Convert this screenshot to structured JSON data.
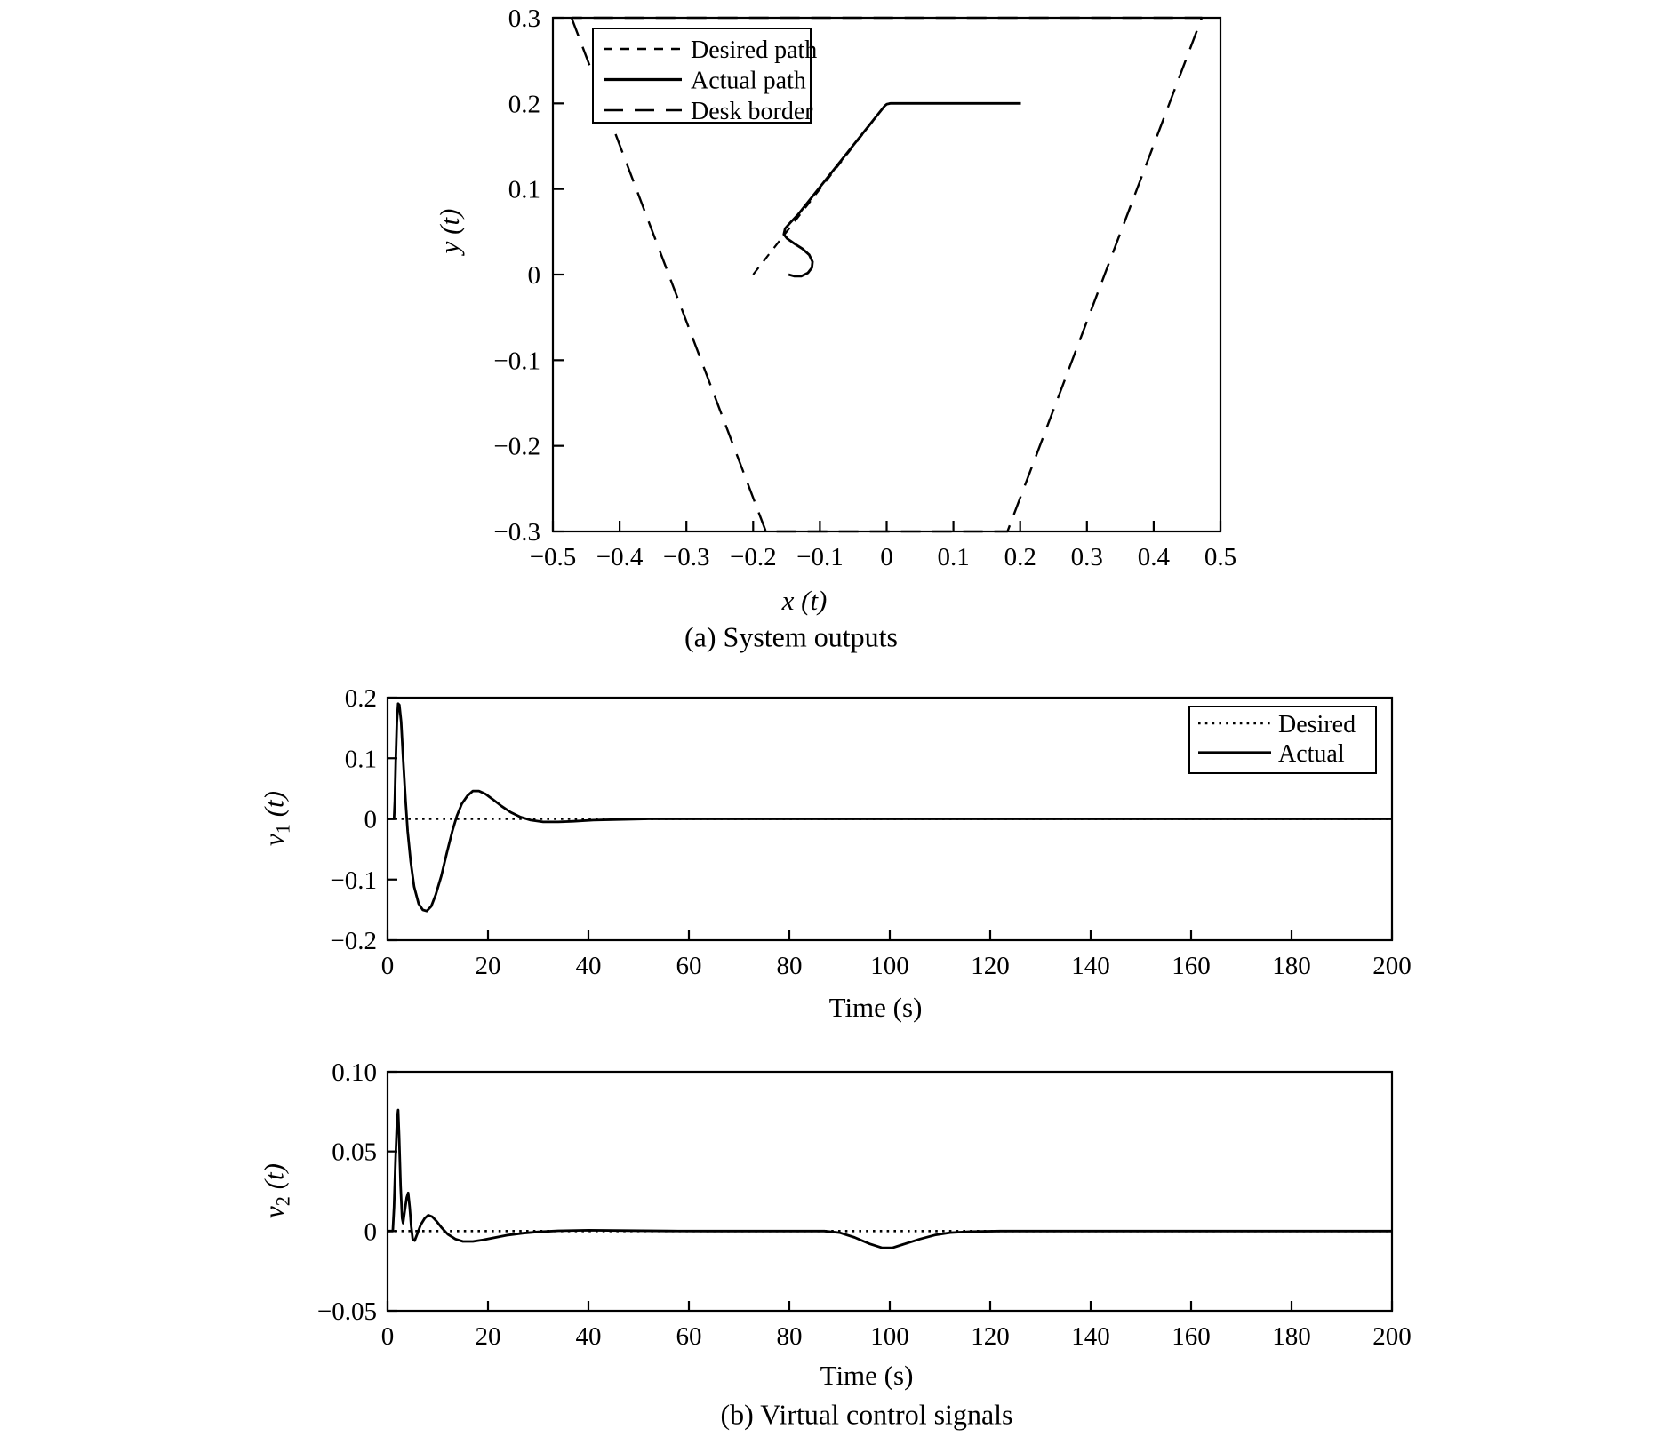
{
  "figure": {
    "background": "#ffffff",
    "line_color": "#000000",
    "caption_a": "(a) System outputs",
    "caption_b": "(b) Virtual control signals"
  },
  "chart_data": [
    {
      "id": "plot-a",
      "type": "line",
      "title": "(a) System outputs",
      "xlabel": "x (t)",
      "ylabel": "y (t)",
      "xlim": [
        -0.5,
        0.5
      ],
      "ylim": [
        -0.3,
        0.3
      ],
      "grid": false,
      "legend_position": "top-left-inside",
      "xtick_vals": [
        -0.5,
        -0.4,
        -0.3,
        -0.2,
        -0.1,
        0,
        0.1,
        0.2,
        0.3,
        0.4,
        0.5
      ],
      "xtick_labels": [
        "−0.5",
        "−0.4",
        "−0.3",
        "−0.2",
        "−0.1",
        "0",
        "0.1",
        "0.2",
        "0.3",
        "0.4",
        "0.5"
      ],
      "ytick_vals": [
        0.3,
        0.2,
        0.1,
        0,
        -0.1,
        -0.2,
        -0.3
      ],
      "ytick_labels": [
        "0.3",
        "0.2",
        "0.1",
        "0",
        "−0.1",
        "−0.2",
        "−0.3"
      ],
      "series": [
        {
          "name": "Desired path",
          "style": "dash",
          "points": [
            [
              -0.2,
              0.0
            ],
            [
              0.0,
              0.2
            ],
            [
              0.2,
              0.2
            ]
          ]
        },
        {
          "name": "Actual path",
          "style": "solid",
          "points": [
            [
              -0.147,
              0.0
            ],
            [
              -0.138,
              -0.002
            ],
            [
              -0.128,
              -0.002
            ],
            [
              -0.118,
              0.002
            ],
            [
              -0.112,
              0.008
            ],
            [
              -0.111,
              0.015
            ],
            [
              -0.116,
              0.023
            ],
            [
              -0.126,
              0.03
            ],
            [
              -0.138,
              0.036
            ],
            [
              -0.149,
              0.042
            ],
            [
              -0.154,
              0.047
            ],
            [
              -0.152,
              0.054
            ],
            [
              -0.144,
              0.061
            ],
            [
              -0.133,
              0.07
            ],
            [
              -0.003,
              0.197
            ],
            [
              0.0,
              0.199
            ],
            [
              0.006,
              0.2
            ],
            [
              0.201,
              0.2
            ]
          ]
        },
        {
          "name": "Desk border",
          "style": "longdash",
          "points": [
            [
              -0.472,
              0.3
            ],
            [
              -0.181,
              -0.3
            ],
            [
              0.181,
              -0.3
            ],
            [
              0.472,
              0.3
            ],
            [
              -0.472,
              0.3
            ]
          ]
        }
      ]
    },
    {
      "id": "plot-v1",
      "type": "line",
      "title": "",
      "xlabel": "Time (s)",
      "ylabel": "v_1 (t)",
      "xlim": [
        0,
        200
      ],
      "ylim": [
        -0.2,
        0.2
      ],
      "grid": false,
      "legend_position": "top-right-inside",
      "xtick_vals": [
        0,
        20,
        40,
        60,
        80,
        100,
        120,
        140,
        160,
        180,
        200
      ],
      "xtick_labels": [
        "0",
        "20",
        "40",
        "60",
        "80",
        "100",
        "120",
        "140",
        "160",
        "180",
        "200"
      ],
      "ytick_vals": [
        0.2,
        0.1,
        0,
        -0.1,
        -0.2
      ],
      "ytick_labels": [
        "0.2",
        "0.1",
        "0",
        "−0.1",
        "−0.2"
      ],
      "series": [
        {
          "name": "Desired",
          "style": "dotted",
          "points": [
            [
              0,
              0
            ],
            [
              200,
              0
            ]
          ]
        },
        {
          "name": "Actual",
          "style": "solid",
          "points": [
            [
              0,
              0
            ],
            [
              1.3,
              0
            ],
            [
              1.45,
              0.03
            ],
            [
              1.65,
              0.1
            ],
            [
              1.85,
              0.16
            ],
            [
              2.1,
              0.19
            ],
            [
              2.35,
              0.188
            ],
            [
              2.7,
              0.16
            ],
            [
              3.1,
              0.1
            ],
            [
              3.6,
              0.03
            ],
            [
              4.0,
              -0.02
            ],
            [
              4.6,
              -0.07
            ],
            [
              5.3,
              -0.112
            ],
            [
              6.2,
              -0.14
            ],
            [
              7.0,
              -0.15
            ],
            [
              7.8,
              -0.152
            ],
            [
              8.7,
              -0.144
            ],
            [
              9.6,
              -0.125
            ],
            [
              10.7,
              -0.094
            ],
            [
              11.8,
              -0.056
            ],
            [
              12.9,
              -0.02
            ],
            [
              13.8,
              0.005
            ],
            [
              14.8,
              0.025
            ],
            [
              15.9,
              0.038
            ],
            [
              17.0,
              0.046
            ],
            [
              18.2,
              0.046
            ],
            [
              19.5,
              0.041
            ],
            [
              21,
              0.032
            ],
            [
              22.7,
              0.021
            ],
            [
              24.5,
              0.011
            ],
            [
              26.5,
              0.003
            ],
            [
              28.5,
              -0.002
            ],
            [
              31,
              -0.005
            ],
            [
              34,
              -0.005
            ],
            [
              37,
              -0.004
            ],
            [
              41,
              -0.002
            ],
            [
              46,
              -0.001
            ],
            [
              52,
              0
            ],
            [
              200,
              0
            ]
          ]
        }
      ]
    },
    {
      "id": "plot-v2",
      "type": "line",
      "title": "(b) Virtual control signals",
      "xlabel": "Time (s)",
      "ylabel": "v_2 (t)",
      "xlim": [
        0,
        200
      ],
      "ylim": [
        -0.05,
        0.1
      ],
      "grid": false,
      "legend_position": "none",
      "xtick_vals": [
        0,
        20,
        40,
        60,
        80,
        100,
        120,
        140,
        160,
        180,
        200
      ],
      "xtick_labels": [
        "0",
        "20",
        "40",
        "60",
        "80",
        "100",
        "120",
        "140",
        "160",
        "180",
        "200"
      ],
      "ytick_vals": [
        0.1,
        0.05,
        0,
        -0.05
      ],
      "ytick_labels": [
        "0.10",
        "0.05",
        "0",
        "−0.05"
      ],
      "series": [
        {
          "name": "Desired",
          "style": "dotted",
          "points": [
            [
              0,
              0
            ],
            [
              200,
              0
            ]
          ]
        },
        {
          "name": "Actual",
          "style": "solid",
          "points": [
            [
              0,
              0
            ],
            [
              1.05,
              0
            ],
            [
              1.3,
              0.015
            ],
            [
              1.6,
              0.045
            ],
            [
              1.9,
              0.07
            ],
            [
              2.1,
              0.076
            ],
            [
              2.3,
              0.06
            ],
            [
              2.6,
              0.028
            ],
            [
              2.9,
              0.008
            ],
            [
              3.1,
              0.005
            ],
            [
              3.4,
              0.012
            ],
            [
              3.8,
              0.021
            ],
            [
              4.1,
              0.024
            ],
            [
              4.4,
              0.015
            ],
            [
              4.7,
              0.003
            ],
            [
              5.0,
              -0.005
            ],
            [
              5.4,
              -0.006
            ],
            [
              5.9,
              -0.002
            ],
            [
              6.6,
              0.004
            ],
            [
              7.4,
              0.008
            ],
            [
              8.1,
              0.01
            ],
            [
              8.9,
              0.009
            ],
            [
              9.8,
              0.006
            ],
            [
              10.8,
              0.002
            ],
            [
              12,
              -0.002
            ],
            [
              13.5,
              -0.005
            ],
            [
              15,
              -0.0065
            ],
            [
              17,
              -0.0065
            ],
            [
              19,
              -0.0055
            ],
            [
              21.5,
              -0.004
            ],
            [
              24,
              -0.0025
            ],
            [
              27,
              -0.0013
            ],
            [
              30,
              -0.0005
            ],
            [
              34,
              0.0002
            ],
            [
              40,
              0.0005
            ],
            [
              48,
              0.0003
            ],
            [
              56,
              0.0001
            ],
            [
              64,
              0
            ],
            [
              87,
              0
            ],
            [
              90,
              -0.001
            ],
            [
              93,
              -0.004
            ],
            [
              96,
              -0.008
            ],
            [
              98.5,
              -0.0105
            ],
            [
              100.5,
              -0.0105
            ],
            [
              103,
              -0.008
            ],
            [
              106,
              -0.005
            ],
            [
              109,
              -0.0025
            ],
            [
              112,
              -0.001
            ],
            [
              116,
              -0.0003
            ],
            [
              122,
              0
            ],
            [
              200,
              0
            ]
          ]
        }
      ]
    }
  ]
}
